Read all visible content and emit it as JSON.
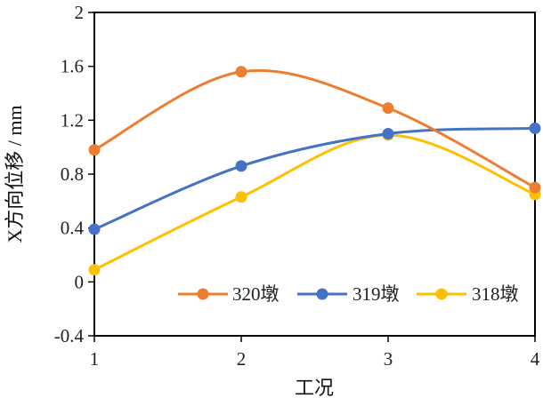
{
  "chart_data": {
    "type": "line",
    "smooth": true,
    "xlabel": "工况",
    "ylabel": "X方向位移 / mm",
    "x": [
      1,
      2,
      3,
      4
    ],
    "x_tick_labels": [
      "1",
      "2",
      "3",
      "4"
    ],
    "ylim": [
      -0.4,
      2
    ],
    "y_ticks": [
      -0.4,
      0,
      0.4,
      0.8,
      1.2,
      1.6,
      2
    ],
    "y_tick_labels": [
      "-0.4",
      "0",
      "0.4",
      "0.8",
      "1.2",
      "1.6",
      "2"
    ],
    "grid": false,
    "legend_position": "bottom-right",
    "series": [
      {
        "name": "320墩",
        "values": [
          0.98,
          1.56,
          1.29,
          0.7
        ],
        "color": "#ED7D31"
      },
      {
        "name": "319墩",
        "values": [
          0.39,
          0.86,
          1.1,
          1.14
        ],
        "color": "#4472C4"
      },
      {
        "name": "318墩",
        "values": [
          0.09,
          0.63,
          1.09,
          0.65
        ],
        "color": "#FFC000"
      }
    ]
  }
}
